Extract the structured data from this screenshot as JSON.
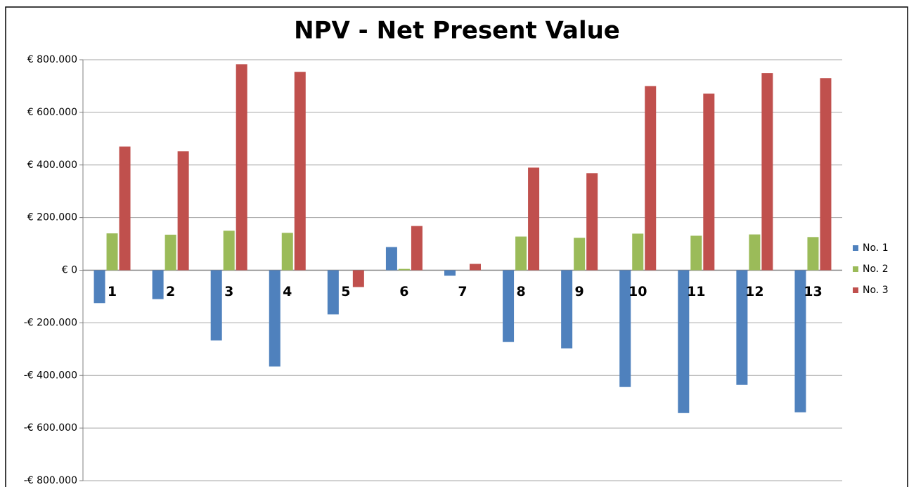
{
  "chart_data": {
    "type": "bar",
    "title": "NPV - Net Present Value",
    "categories": [
      "1",
      "2",
      "3",
      "4",
      "5",
      "6",
      "7",
      "8",
      "9",
      "10",
      "11",
      "12",
      "13"
    ],
    "series": [
      {
        "name": "No. 1",
        "color": "#4f81bd",
        "values": [
          -125000,
          -110000,
          -267000,
          -366000,
          -168000,
          88000,
          -21000,
          -273000,
          -297000,
          -444000,
          -543000,
          -436000,
          -540000
        ]
      },
      {
        "name": "No. 2",
        "color": "#9bbb59",
        "values": [
          140000,
          135000,
          150000,
          142000,
          0,
          5000,
          0,
          128000,
          123000,
          139000,
          131000,
          136000,
          126000
        ]
      },
      {
        "name": "No. 3",
        "color": "#c0504d",
        "values": [
          470000,
          452000,
          783000,
          754000,
          -64000,
          168000,
          24000,
          390000,
          369000,
          700000,
          671000,
          749000,
          730000
        ]
      }
    ],
    "ylim": [
      -800000,
      800000
    ],
    "yticks": [
      {
        "value": -800000,
        "label": "-€ 800.000"
      },
      {
        "value": -600000,
        "label": "-€ 600.000"
      },
      {
        "value": -400000,
        "label": "-€ 400.000"
      },
      {
        "value": -200000,
        "label": "-€ 200.000"
      },
      {
        "value": 0,
        "label": "€ 0"
      },
      {
        "value": 200000,
        "label": "€ 200.000"
      },
      {
        "value": 400000,
        "label": "€ 400.000"
      },
      {
        "value": 600000,
        "label": "€ 600.000"
      },
      {
        "value": 800000,
        "label": "€ 800.000"
      }
    ],
    "grid": true,
    "legend": "right"
  }
}
